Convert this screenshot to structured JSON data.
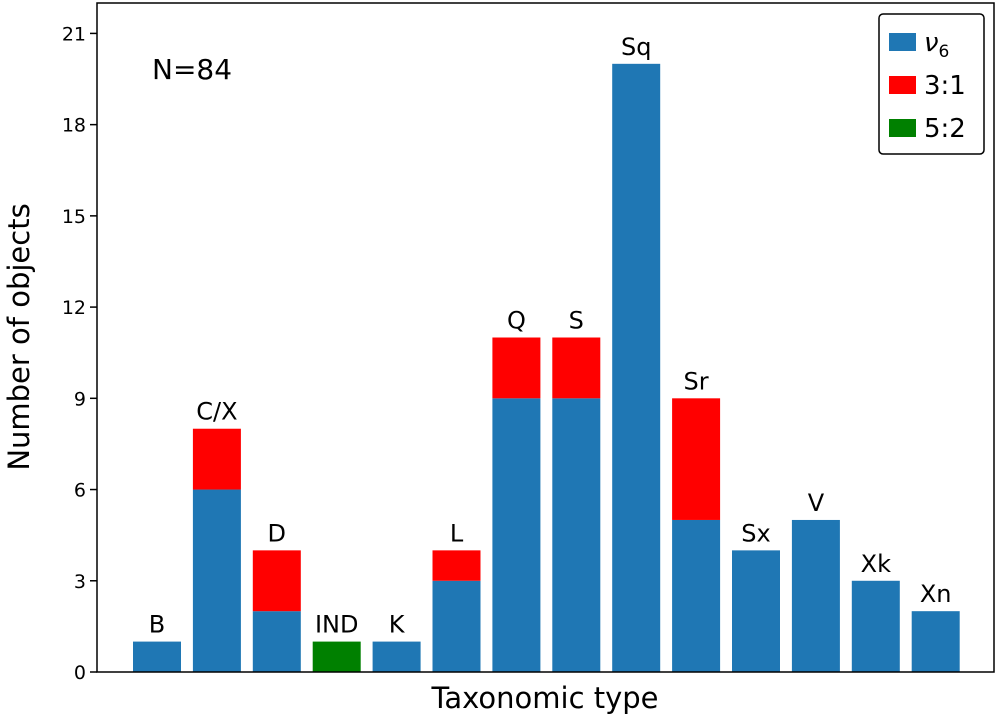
{
  "chart_data": {
    "type": "bar",
    "stacked": true,
    "title": "",
    "xlabel": "Taxonomic type",
    "ylabel": "Number of objects",
    "ylim": [
      0,
      22
    ],
    "yticks": [
      0,
      3,
      6,
      9,
      12,
      15,
      18,
      21
    ],
    "annotation": "N=84",
    "legend_position": "top-right",
    "categories": [
      "B",
      "C/X",
      "D",
      "IND",
      "K",
      "L",
      "Q",
      "S",
      "Sq",
      "Sr",
      "Sx",
      "V",
      "Xk",
      "Xn"
    ],
    "series": [
      {
        "name": "ν6",
        "color": "#1f77b4",
        "values": [
          1,
          6,
          2,
          0,
          1,
          3,
          9,
          9,
          20,
          5,
          4,
          5,
          3,
          2
        ]
      },
      {
        "name": "3:1",
        "color": "#ff0000",
        "values": [
          0,
          2,
          2,
          0,
          0,
          1,
          2,
          2,
          0,
          4,
          0,
          0,
          0,
          0
        ]
      },
      {
        "name": "5:2",
        "color": "#008000",
        "values": [
          0,
          0,
          0,
          1,
          0,
          0,
          0,
          0,
          0,
          0,
          0,
          0,
          0,
          0
        ]
      }
    ],
    "legend_entries": [
      {
        "main": "ν",
        "sub": "6"
      },
      {
        "main": "3:1",
        "sub": ""
      },
      {
        "main": "5:2",
        "sub": ""
      }
    ]
  }
}
